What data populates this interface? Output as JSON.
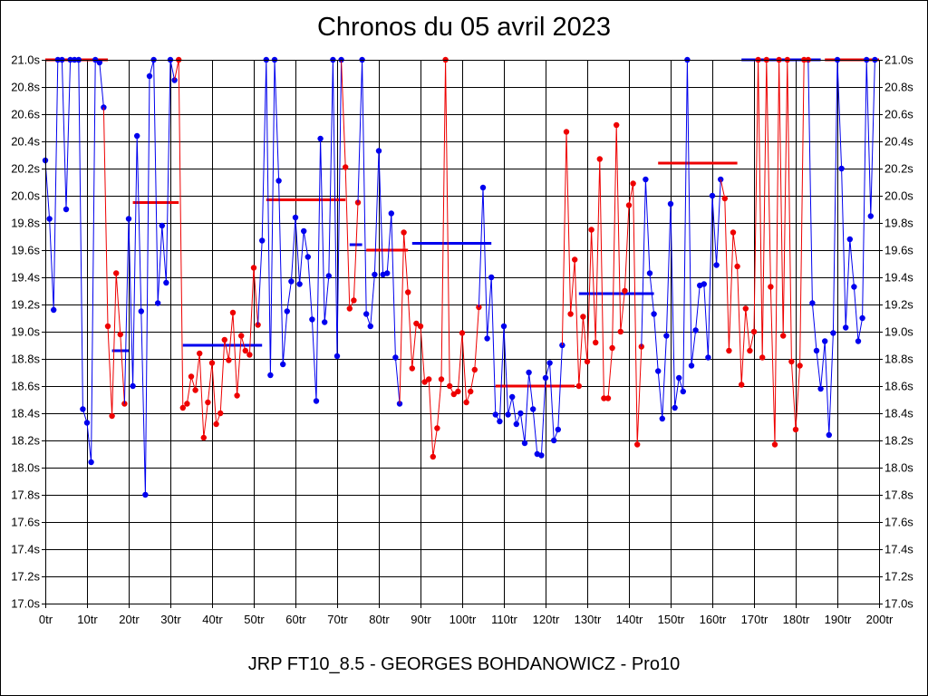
{
  "chart_data": {
    "type": "line",
    "title": "Chronos du 05 avril 2023",
    "subtitle": "JRP FT10_8.5 - GEORGES BOHDANOWICZ - Pro10",
    "ylim": [
      17.0,
      21.0
    ],
    "xlim": [
      0,
      200
    ],
    "y_ticks": [
      "17.0s",
      "17.2s",
      "17.4s",
      "17.6s",
      "17.8s",
      "18.0s",
      "18.2s",
      "18.4s",
      "18.6s",
      "18.8s",
      "19.0s",
      "19.2s",
      "19.4s",
      "19.6s",
      "19.8s",
      "20.0s",
      "20.2s",
      "20.4s",
      "20.6s",
      "20.8s",
      "21.0s"
    ],
    "x_ticks": [
      "0tr",
      "10tr",
      "20tr",
      "30tr",
      "40tr",
      "50tr",
      "60tr",
      "70tr",
      "80tr",
      "90tr",
      "100tr",
      "110tr",
      "120tr",
      "130tr",
      "140tr",
      "150tr",
      "160tr",
      "170tr",
      "180tr",
      "190tr",
      "200tr"
    ],
    "grid": true,
    "colors": {
      "blue": "#0000ee",
      "red": "#ee0000",
      "grid": "#000000"
    },
    "series": [
      {
        "color": "blue",
        "points": [
          [
            0,
            20.26
          ],
          [
            1,
            19.83
          ],
          [
            2,
            19.16
          ],
          [
            3,
            21.0
          ],
          [
            4,
            21.0
          ],
          [
            5,
            19.9
          ],
          [
            6,
            21.0
          ],
          [
            7,
            21.0
          ],
          [
            8,
            21.0
          ],
          [
            9,
            18.43
          ],
          [
            10,
            18.33
          ],
          [
            11,
            18.04
          ],
          [
            12,
            21.0
          ],
          [
            13,
            20.98
          ],
          [
            14,
            20.65
          ]
        ]
      },
      {
        "color": "red",
        "points": [
          [
            15,
            19.04
          ],
          [
            16,
            18.38
          ],
          [
            17,
            19.43
          ],
          [
            18,
            18.98
          ],
          [
            19,
            18.47
          ]
        ]
      },
      {
        "color": "blue",
        "points": [
          [
            20,
            19.83
          ],
          [
            21,
            18.6
          ],
          [
            22,
            20.44
          ],
          [
            23,
            19.15
          ],
          [
            24,
            17.8
          ],
          [
            25,
            20.88
          ],
          [
            26,
            21.0
          ],
          [
            27,
            19.21
          ],
          [
            28,
            19.78
          ],
          [
            29,
            19.36
          ],
          [
            30,
            21.0
          ],
          [
            31,
            20.85
          ]
        ]
      },
      {
        "color": "red",
        "points": [
          [
            32,
            21.0
          ],
          [
            33,
            18.44
          ],
          [
            34,
            18.47
          ],
          [
            35,
            18.67
          ],
          [
            36,
            18.57
          ],
          [
            37,
            18.84
          ],
          [
            38,
            18.22
          ],
          [
            39,
            18.48
          ],
          [
            40,
            18.77
          ],
          [
            41,
            18.32
          ],
          [
            42,
            18.4
          ],
          [
            43,
            18.94
          ],
          [
            44,
            18.79
          ],
          [
            45,
            19.14
          ],
          [
            46,
            18.53
          ],
          [
            47,
            18.97
          ],
          [
            48,
            18.86
          ],
          [
            49,
            18.83
          ],
          [
            50,
            19.47
          ],
          [
            51,
            19.05
          ]
        ]
      },
      {
        "color": "blue",
        "points": [
          [
            52,
            19.67
          ],
          [
            53,
            21.0
          ],
          [
            54,
            18.68
          ],
          [
            55,
            21.0
          ],
          [
            56,
            20.11
          ],
          [
            57,
            18.76
          ],
          [
            58,
            19.15
          ],
          [
            59,
            19.37
          ],
          [
            60,
            19.84
          ],
          [
            61,
            19.35
          ],
          [
            62,
            19.74
          ],
          [
            63,
            19.55
          ],
          [
            64,
            19.09
          ],
          [
            65,
            18.49
          ],
          [
            66,
            20.42
          ],
          [
            67,
            19.07
          ],
          [
            68,
            19.41
          ],
          [
            69,
            21.0
          ],
          [
            70,
            18.82
          ],
          [
            71,
            21.0
          ]
        ]
      },
      {
        "color": "red",
        "points": [
          [
            72,
            20.21
          ],
          [
            73,
            19.17
          ],
          [
            74,
            19.23
          ],
          [
            75,
            19.95
          ]
        ]
      },
      {
        "color": "blue",
        "points": [
          [
            76,
            21.0
          ],
          [
            77,
            19.13
          ],
          [
            78,
            19.04
          ],
          [
            79,
            19.42
          ],
          [
            80,
            20.33
          ],
          [
            81,
            19.42
          ],
          [
            82,
            19.43
          ],
          [
            83,
            19.87
          ],
          [
            84,
            18.81
          ],
          [
            85,
            18.47
          ]
        ]
      },
      {
        "color": "red",
        "points": [
          [
            86,
            19.73
          ],
          [
            87,
            19.29
          ],
          [
            88,
            18.73
          ],
          [
            89,
            19.06
          ],
          [
            90,
            19.04
          ],
          [
            91,
            18.63
          ],
          [
            92,
            18.65
          ],
          [
            93,
            18.08
          ],
          [
            94,
            18.29
          ],
          [
            95,
            18.65
          ],
          [
            96,
            21.0
          ],
          [
            97,
            18.6
          ],
          [
            98,
            18.54
          ],
          [
            99,
            18.56
          ],
          [
            100,
            18.99
          ],
          [
            101,
            18.48
          ],
          [
            102,
            18.56
          ],
          [
            103,
            18.72
          ],
          [
            104,
            19.18
          ]
        ]
      },
      {
        "color": "blue",
        "points": [
          [
            105,
            20.06
          ],
          [
            106,
            18.95
          ],
          [
            107,
            19.4
          ],
          [
            108,
            18.39
          ],
          [
            109,
            18.34
          ],
          [
            110,
            19.04
          ],
          [
            111,
            18.39
          ],
          [
            112,
            18.52
          ],
          [
            113,
            18.32
          ],
          [
            114,
            18.4
          ],
          [
            115,
            18.18
          ],
          [
            116,
            18.7
          ],
          [
            117,
            18.43
          ],
          [
            118,
            18.1
          ],
          [
            119,
            18.09
          ],
          [
            120,
            18.66
          ],
          [
            121,
            18.77
          ],
          [
            122,
            18.2
          ],
          [
            123,
            18.28
          ],
          [
            124,
            18.9
          ]
        ]
      },
      {
        "color": "red",
        "points": [
          [
            125,
            20.47
          ],
          [
            126,
            19.13
          ],
          [
            127,
            19.53
          ],
          [
            128,
            18.6
          ],
          [
            129,
            19.11
          ],
          [
            130,
            18.78
          ],
          [
            131,
            19.75
          ],
          [
            132,
            18.92
          ],
          [
            133,
            20.27
          ],
          [
            134,
            18.51
          ],
          [
            135,
            18.51
          ],
          [
            136,
            18.88
          ],
          [
            137,
            20.52
          ],
          [
            138,
            19.0
          ],
          [
            139,
            19.3
          ],
          [
            140,
            19.93
          ],
          [
            141,
            20.09
          ],
          [
            142,
            18.17
          ],
          [
            143,
            18.89
          ]
        ]
      },
      {
        "color": "blue",
        "points": [
          [
            144,
            20.12
          ],
          [
            145,
            19.43
          ],
          [
            146,
            19.13
          ],
          [
            147,
            18.71
          ],
          [
            148,
            18.36
          ],
          [
            149,
            18.97
          ],
          [
            150,
            19.94
          ],
          [
            151,
            18.44
          ],
          [
            152,
            18.66
          ],
          [
            153,
            18.56
          ],
          [
            154,
            21.0
          ],
          [
            155,
            18.75
          ],
          [
            156,
            19.01
          ],
          [
            157,
            19.34
          ],
          [
            158,
            19.35
          ],
          [
            159,
            18.81
          ],
          [
            160,
            20.0
          ],
          [
            161,
            19.49
          ],
          [
            162,
            20.12
          ]
        ]
      },
      {
        "color": "red",
        "points": [
          [
            163,
            19.98
          ],
          [
            164,
            18.86
          ],
          [
            165,
            19.73
          ],
          [
            166,
            19.48
          ],
          [
            167,
            18.61
          ],
          [
            168,
            19.17
          ],
          [
            169,
            18.86
          ],
          [
            170,
            19.0
          ],
          [
            171,
            21.0
          ],
          [
            172,
            18.81
          ],
          [
            173,
            21.0
          ],
          [
            174,
            19.33
          ],
          [
            175,
            18.17
          ],
          [
            176,
            21.0
          ],
          [
            177,
            18.97
          ],
          [
            178,
            21.0
          ],
          [
            179,
            18.78
          ],
          [
            180,
            18.28
          ],
          [
            181,
            18.75
          ],
          [
            182,
            21.0
          ],
          [
            183,
            21.0
          ]
        ]
      },
      {
        "color": "blue",
        "points": [
          [
            184,
            19.21
          ],
          [
            185,
            18.86
          ],
          [
            186,
            18.58
          ],
          [
            187,
            18.93
          ],
          [
            188,
            18.24
          ],
          [
            189,
            18.99
          ],
          [
            190,
            21.0
          ],
          [
            191,
            20.2
          ],
          [
            192,
            19.03
          ],
          [
            193,
            19.68
          ],
          [
            194,
            19.33
          ],
          [
            195,
            18.93
          ],
          [
            196,
            19.1
          ],
          [
            197,
            21.0
          ],
          [
            198,
            19.85
          ],
          [
            199,
            21.0
          ]
        ]
      }
    ],
    "averages": [
      {
        "color": "red",
        "x0": 0,
        "x1": 15,
        "y": 21.0
      },
      {
        "color": "blue",
        "x0": 16,
        "x1": 20,
        "y": 18.86
      },
      {
        "color": "red",
        "x0": 21,
        "x1": 32,
        "y": 19.95
      },
      {
        "color": "blue",
        "x0": 33,
        "x1": 52,
        "y": 18.9
      },
      {
        "color": "red",
        "x0": 53,
        "x1": 72,
        "y": 19.97
      },
      {
        "color": "blue",
        "x0": 73,
        "x1": 76,
        "y": 19.64
      },
      {
        "color": "red",
        "x0": 77,
        "x1": 87,
        "y": 19.6
      },
      {
        "color": "blue",
        "x0": 88,
        "x1": 107,
        "y": 19.65
      },
      {
        "color": "red",
        "x0": 108,
        "x1": 127,
        "y": 18.6
      },
      {
        "color": "blue",
        "x0": 128,
        "x1": 146,
        "y": 19.28
      },
      {
        "color": "red",
        "x0": 147,
        "x1": 166,
        "y": 20.24
      },
      {
        "color": "blue",
        "x0": 167,
        "x1": 186,
        "y": 21.0
      },
      {
        "color": "red",
        "x0": 187,
        "x1": 206,
        "y": 21.0
      }
    ]
  }
}
